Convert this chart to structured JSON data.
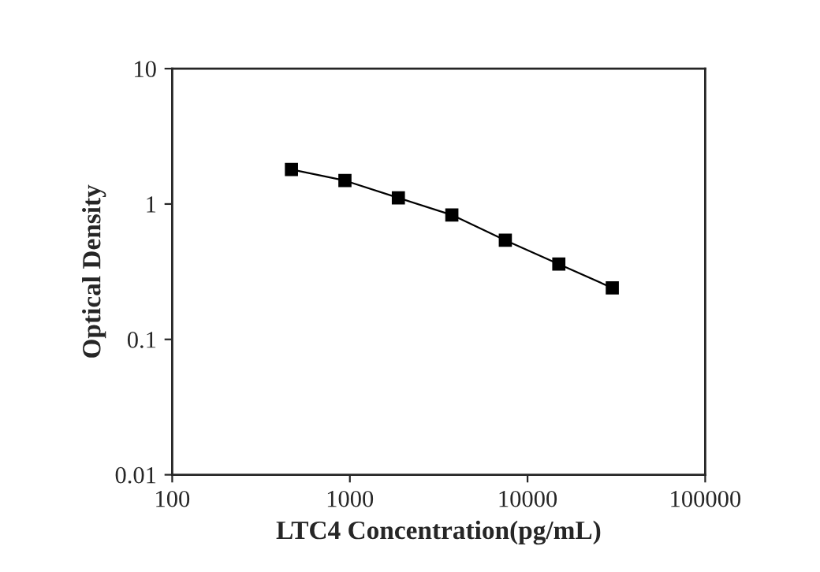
{
  "chart_data": {
    "type": "line",
    "xlabel": "LTC4 Concentration(pg/mL)",
    "ylabel": "Optical Density",
    "log": "xy",
    "x": [
      469,
      938,
      1875,
      3750,
      7500,
      15000,
      30000
    ],
    "series": [
      {
        "color": "#000000",
        "values": [
          1.8,
          1.49,
          1.11,
          0.83,
          0.54,
          0.36,
          0.24
        ]
      }
    ],
    "marker": "square",
    "line_style": "solid",
    "xlim": [
      100,
      100000
    ],
    "xticks": [
      100,
      1000,
      10000,
      100000
    ],
    "ylim": [
      0.01,
      10
    ],
    "yticks": [
      0.01,
      0.1,
      1,
      10
    ],
    "grid": false,
    "legend": false
  }
}
